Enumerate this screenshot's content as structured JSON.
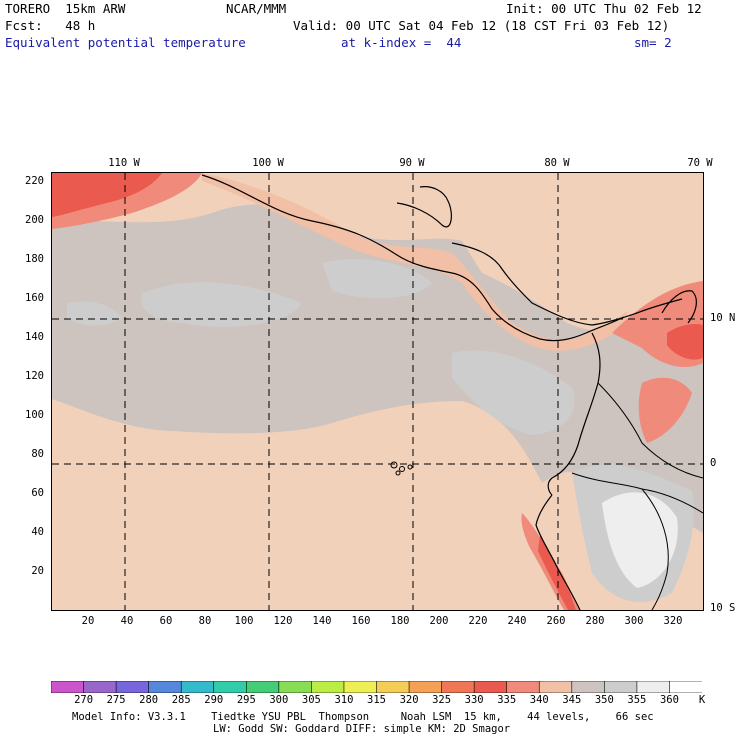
{
  "header": {
    "model": "TORERO  15km ARW",
    "center": "NCAR/MMM",
    "init": "Init: 00 UTC Thu 02 Feb 12",
    "fcst": "Fcst:   48 h",
    "valid": "Valid: 00 UTC Sat 04 Feb 12 (18 CST Fri 03 Feb 12)",
    "field": "Equivalent potential temperature",
    "level": "at k-index =  44",
    "smooth": "sm= 2"
  },
  "axes": {
    "y_ticks": [
      "220",
      "200",
      "180",
      "160",
      "140",
      "120",
      "100",
      "80",
      "60",
      "40",
      "20"
    ],
    "x_ticks": [
      "20",
      "40",
      "60",
      "80",
      "100",
      "120",
      "140",
      "160",
      "180",
      "200",
      "220",
      "240",
      "260",
      "280",
      "300",
      "320"
    ],
    "lon_labels": [
      "110 W",
      "100 W",
      "90 W",
      "80 W",
      "70 W"
    ],
    "lat_labels": [
      "10 N",
      "0",
      "10 S"
    ]
  },
  "colorbar": {
    "labels": [
      "270",
      "275",
      "280",
      "285",
      "290",
      "295",
      "300",
      "305",
      "310",
      "315",
      "320",
      "325",
      "330",
      "335",
      "340",
      "345",
      "350",
      "355",
      "360"
    ],
    "unit": "K",
    "colors": [
      "#cc55cc",
      "#9966cc",
      "#7766dd",
      "#5588dd",
      "#33bbcc",
      "#33ccaa",
      "#44cc77",
      "#88dd55",
      "#bbee44",
      "#eeee55",
      "#f5cc55",
      "#f5a055",
      "#ef7755",
      "#ea5a4e",
      "#f08a7a",
      "#f2c0a6",
      "#cdc3bf",
      "#cdcdcd",
      "#eeeeee",
      "#ffffff"
    ]
  },
  "footer": {
    "line1": "Model Info: V3.3.1    Tiedtke YSU PBL  Thompson     Noah LSM  15 km,    44 levels,    66 sec",
    "line2": "LW: Godd SW: Goddard DIFF: simple KM: 2D Smagor"
  }
}
